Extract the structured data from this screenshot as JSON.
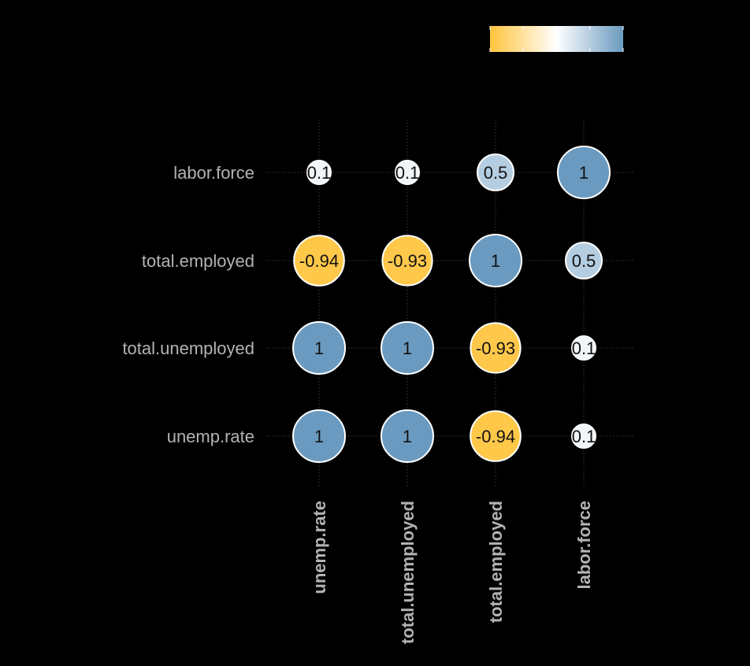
{
  "chart_data": {
    "type": "heatmap",
    "subtype": "correlation-circles",
    "title": "",
    "variables": [
      "unemp.rate",
      "total.unemployed",
      "total.employed",
      "labor.force"
    ],
    "rows": [
      "labor.force",
      "total.employed",
      "total.unemployed",
      "unemp.rate"
    ],
    "columns": [
      "unemp.rate",
      "total.unemployed",
      "total.employed",
      "labor.force"
    ],
    "matrix": [
      [
        0.1,
        0.1,
        0.5,
        1
      ],
      [
        -0.94,
        -0.93,
        1,
        0.5
      ],
      [
        1,
        1,
        -0.93,
        0.1
      ],
      [
        1,
        1,
        -0.94,
        0.1
      ]
    ],
    "labels": [
      [
        "0.1",
        "0.1",
        "0.5",
        "1"
      ],
      [
        "-0.94",
        "-0.93",
        "1",
        "0.5"
      ],
      [
        "1",
        "1",
        "-0.93",
        "0.1"
      ],
      [
        "1",
        "1",
        "-0.94",
        "0.1"
      ]
    ],
    "value_range": [
      -1,
      1
    ],
    "colors": {
      "low": "#FFC43D",
      "mid": "#FFFFFF",
      "high": "#6A9AC0"
    },
    "legend": {
      "placement": "top-right",
      "kind": "colorbar"
    },
    "grid": true
  }
}
